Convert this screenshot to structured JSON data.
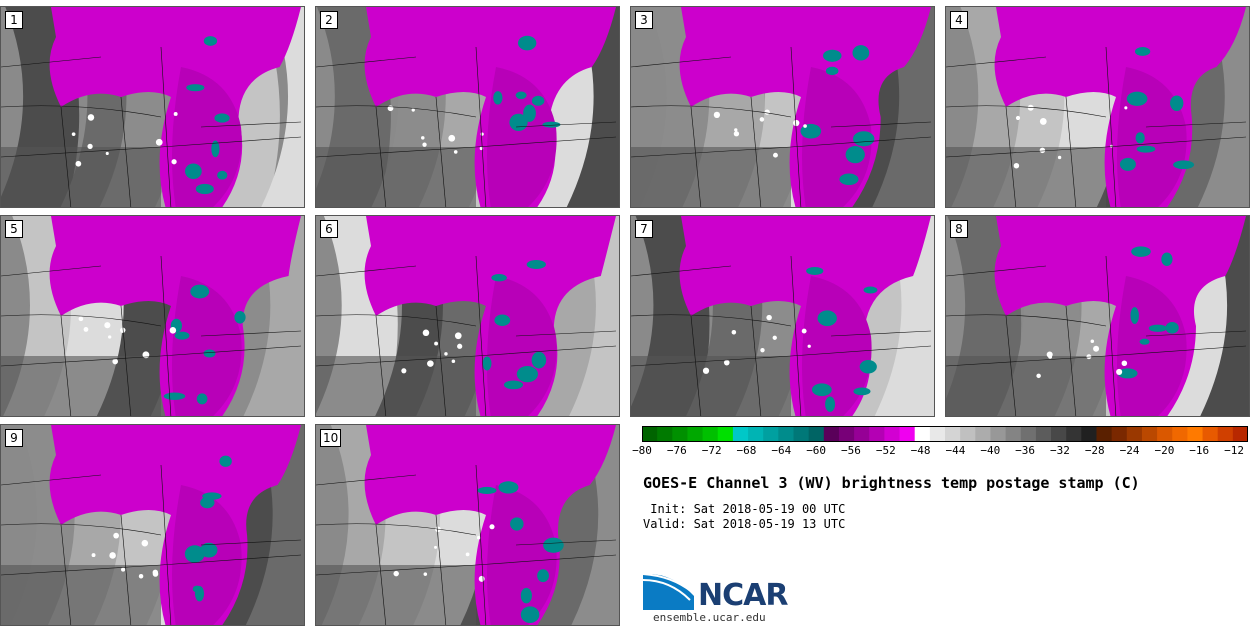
{
  "panels": [
    {
      "label": "1"
    },
    {
      "label": "2"
    },
    {
      "label": "3"
    },
    {
      "label": "4"
    },
    {
      "label": "5"
    },
    {
      "label": "6"
    },
    {
      "label": "7"
    },
    {
      "label": "8"
    },
    {
      "label": "9"
    },
    {
      "label": "10"
    }
  ],
  "colorbar": {
    "ticks": [
      "−80",
      "−76",
      "−72",
      "−68",
      "−64",
      "−60",
      "−56",
      "−52",
      "−48",
      "−44",
      "−40",
      "−36",
      "−32",
      "−28",
      "−24",
      "−20",
      "−16",
      "−12"
    ],
    "colors": [
      "#006400",
      "#007a00",
      "#009000",
      "#00a800",
      "#00c000",
      "#00e000",
      "#00c8c8",
      "#00b4b4",
      "#00a0a0",
      "#008c8c",
      "#007878",
      "#006464",
      "#5a005a",
      "#780078",
      "#960096",
      "#b400b4",
      "#d200d2",
      "#f000f0",
      "#ffffff",
      "#e8e8e8",
      "#d4d4d4",
      "#c0c0c0",
      "#acacac",
      "#989898",
      "#848484",
      "#707070",
      "#5c5c5c",
      "#484848",
      "#343434",
      "#202020",
      "#5a2000",
      "#7a2800",
      "#9a3800",
      "#ba4800",
      "#da5800",
      "#f06800",
      "#ff7a00",
      "#e85a00",
      "#d04000",
      "#b82800"
    ]
  },
  "title": "GOES-E Channel 3 (WV) brightness temp postage stamp (C)",
  "init": " Init: Sat 2018-05-19 00 UTC",
  "valid": "Valid: Sat 2018-05-19 13 UTC",
  "logo": {
    "name": "NCAR",
    "url": "ensemble.ucar.edu"
  }
}
